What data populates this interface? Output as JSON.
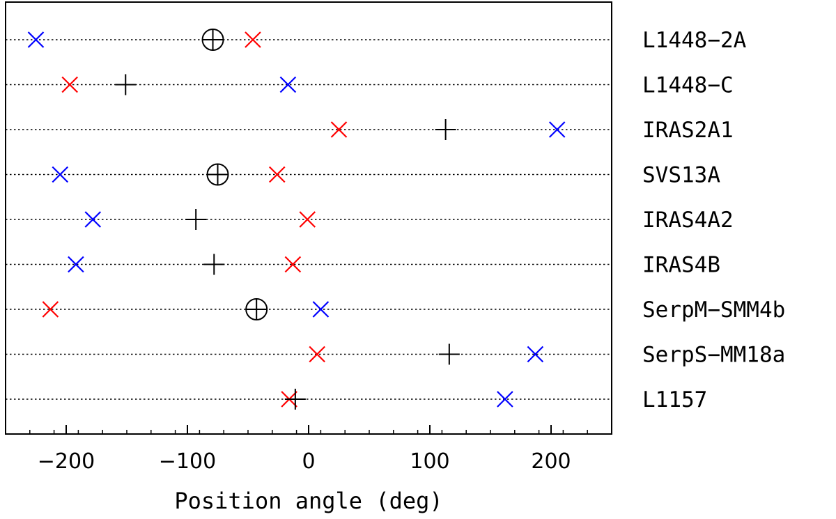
{
  "chart_data": {
    "type": "scatter",
    "title": "",
    "xlabel": "Position angle (deg)",
    "ylabel": "",
    "xlim": [
      -250,
      250
    ],
    "xticks": [
      -200,
      -100,
      0,
      100,
      200
    ],
    "x_tick_labels": [
      "−200",
      "−100",
      "0",
      "100",
      "200"
    ],
    "grid": "dotted horizontal line per source",
    "colors": {
      "blue": "#0000ff",
      "red": "#ff0000",
      "black": "#000000"
    },
    "sources": [
      {
        "name": "L1448−2A",
        "blue": -225,
        "red": -46,
        "center": -79,
        "center_marker": "circle-plus"
      },
      {
        "name": "L1448−C",
        "blue": -17,
        "red": -197,
        "center": -151,
        "center_marker": "plus"
      },
      {
        "name": "IRAS2A1",
        "blue": 205,
        "red": 25,
        "center": 113,
        "center_marker": "plus"
      },
      {
        "name": "SVS13A",
        "blue": -205,
        "red": -26,
        "center": -75,
        "center_marker": "circle-plus"
      },
      {
        "name": "IRAS4A2",
        "blue": -178,
        "red": -1,
        "center": -93,
        "center_marker": "plus"
      },
      {
        "name": "IRAS4B",
        "blue": -192,
        "red": -13,
        "center": -78,
        "center_marker": "plus"
      },
      {
        "name": "SerpM−SMM4b",
        "blue": 10,
        "red": -213,
        "center": -43,
        "center_marker": "circle-plus"
      },
      {
        "name": "SerpS−MM18a",
        "blue": 187,
        "red": 7,
        "center": 116,
        "center_marker": "plus"
      },
      {
        "name": "L1157",
        "blue": 162,
        "red": -16,
        "center": -11,
        "center_marker": "plus"
      }
    ]
  }
}
